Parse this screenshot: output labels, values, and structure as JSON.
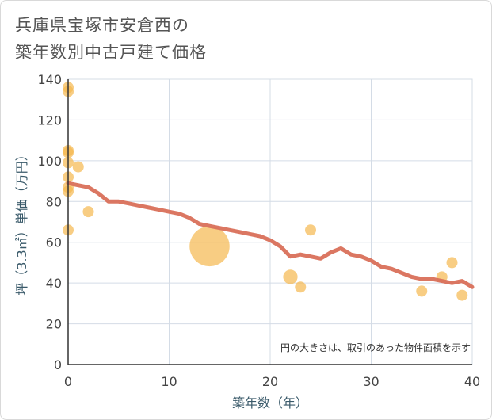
{
  "chart_data": {
    "type": "scatter",
    "title_lines": [
      "兵庫県宝塚市安倉西の",
      "築年数別中古戸建て価格"
    ],
    "xlabel": "築年数（年）",
    "ylabel": "坪（3.3㎡）単価（万円）",
    "xlim": [
      0,
      40
    ],
    "ylim": [
      0,
      140
    ],
    "x_ticks": [
      0,
      10,
      20,
      30,
      40
    ],
    "y_ticks": [
      0,
      20,
      40,
      60,
      80,
      100,
      120,
      140
    ],
    "grid": true,
    "note": "円の大きさは、取引のあった物件面積を示す",
    "colors": {
      "bubble": "#f5b84f",
      "trend": "#d9705a",
      "grid": "#d4dce6",
      "axis": "#333333"
    },
    "series": [
      {
        "name": "transactions",
        "points": [
          {
            "x": 0,
            "y": 136,
            "size": 1
          },
          {
            "x": 0,
            "y": 134,
            "size": 1
          },
          {
            "x": 0,
            "y": 105,
            "size": 1
          },
          {
            "x": 0,
            "y": 104,
            "size": 1
          },
          {
            "x": 0,
            "y": 99,
            "size": 1
          },
          {
            "x": 0,
            "y": 92,
            "size": 1
          },
          {
            "x": 0,
            "y": 87,
            "size": 1
          },
          {
            "x": 0,
            "y": 85,
            "size": 1
          },
          {
            "x": 0,
            "y": 66,
            "size": 1
          },
          {
            "x": 1,
            "y": 97,
            "size": 1
          },
          {
            "x": 2,
            "y": 75,
            "size": 1
          },
          {
            "x": 14,
            "y": 58,
            "size": 13
          },
          {
            "x": 22,
            "y": 43,
            "size": 1.7
          },
          {
            "x": 23,
            "y": 38,
            "size": 1
          },
          {
            "x": 24,
            "y": 66,
            "size": 1
          },
          {
            "x": 35,
            "y": 36,
            "size": 1
          },
          {
            "x": 37,
            "y": 43,
            "size": 1
          },
          {
            "x": 38,
            "y": 50,
            "size": 1
          },
          {
            "x": 39,
            "y": 34,
            "size": 1
          }
        ]
      },
      {
        "name": "trend",
        "x": [
          0,
          2,
          3,
          4,
          5,
          6,
          7,
          8,
          9,
          10,
          11,
          12,
          13,
          14,
          15,
          16,
          17,
          18,
          19,
          20,
          21,
          22,
          23,
          24,
          25,
          26,
          27,
          28,
          29,
          30,
          31,
          32,
          33,
          34,
          35,
          36,
          37,
          38,
          39,
          40
        ],
        "y": [
          89,
          87,
          84,
          80,
          80,
          79,
          78,
          77,
          76,
          75,
          74,
          72,
          69,
          68,
          67,
          66,
          65,
          64,
          63,
          61,
          58,
          53,
          54,
          53,
          52,
          55,
          57,
          54,
          53,
          51,
          48,
          47,
          45,
          43,
          42,
          42,
          41,
          40,
          41,
          38
        ]
      }
    ]
  }
}
